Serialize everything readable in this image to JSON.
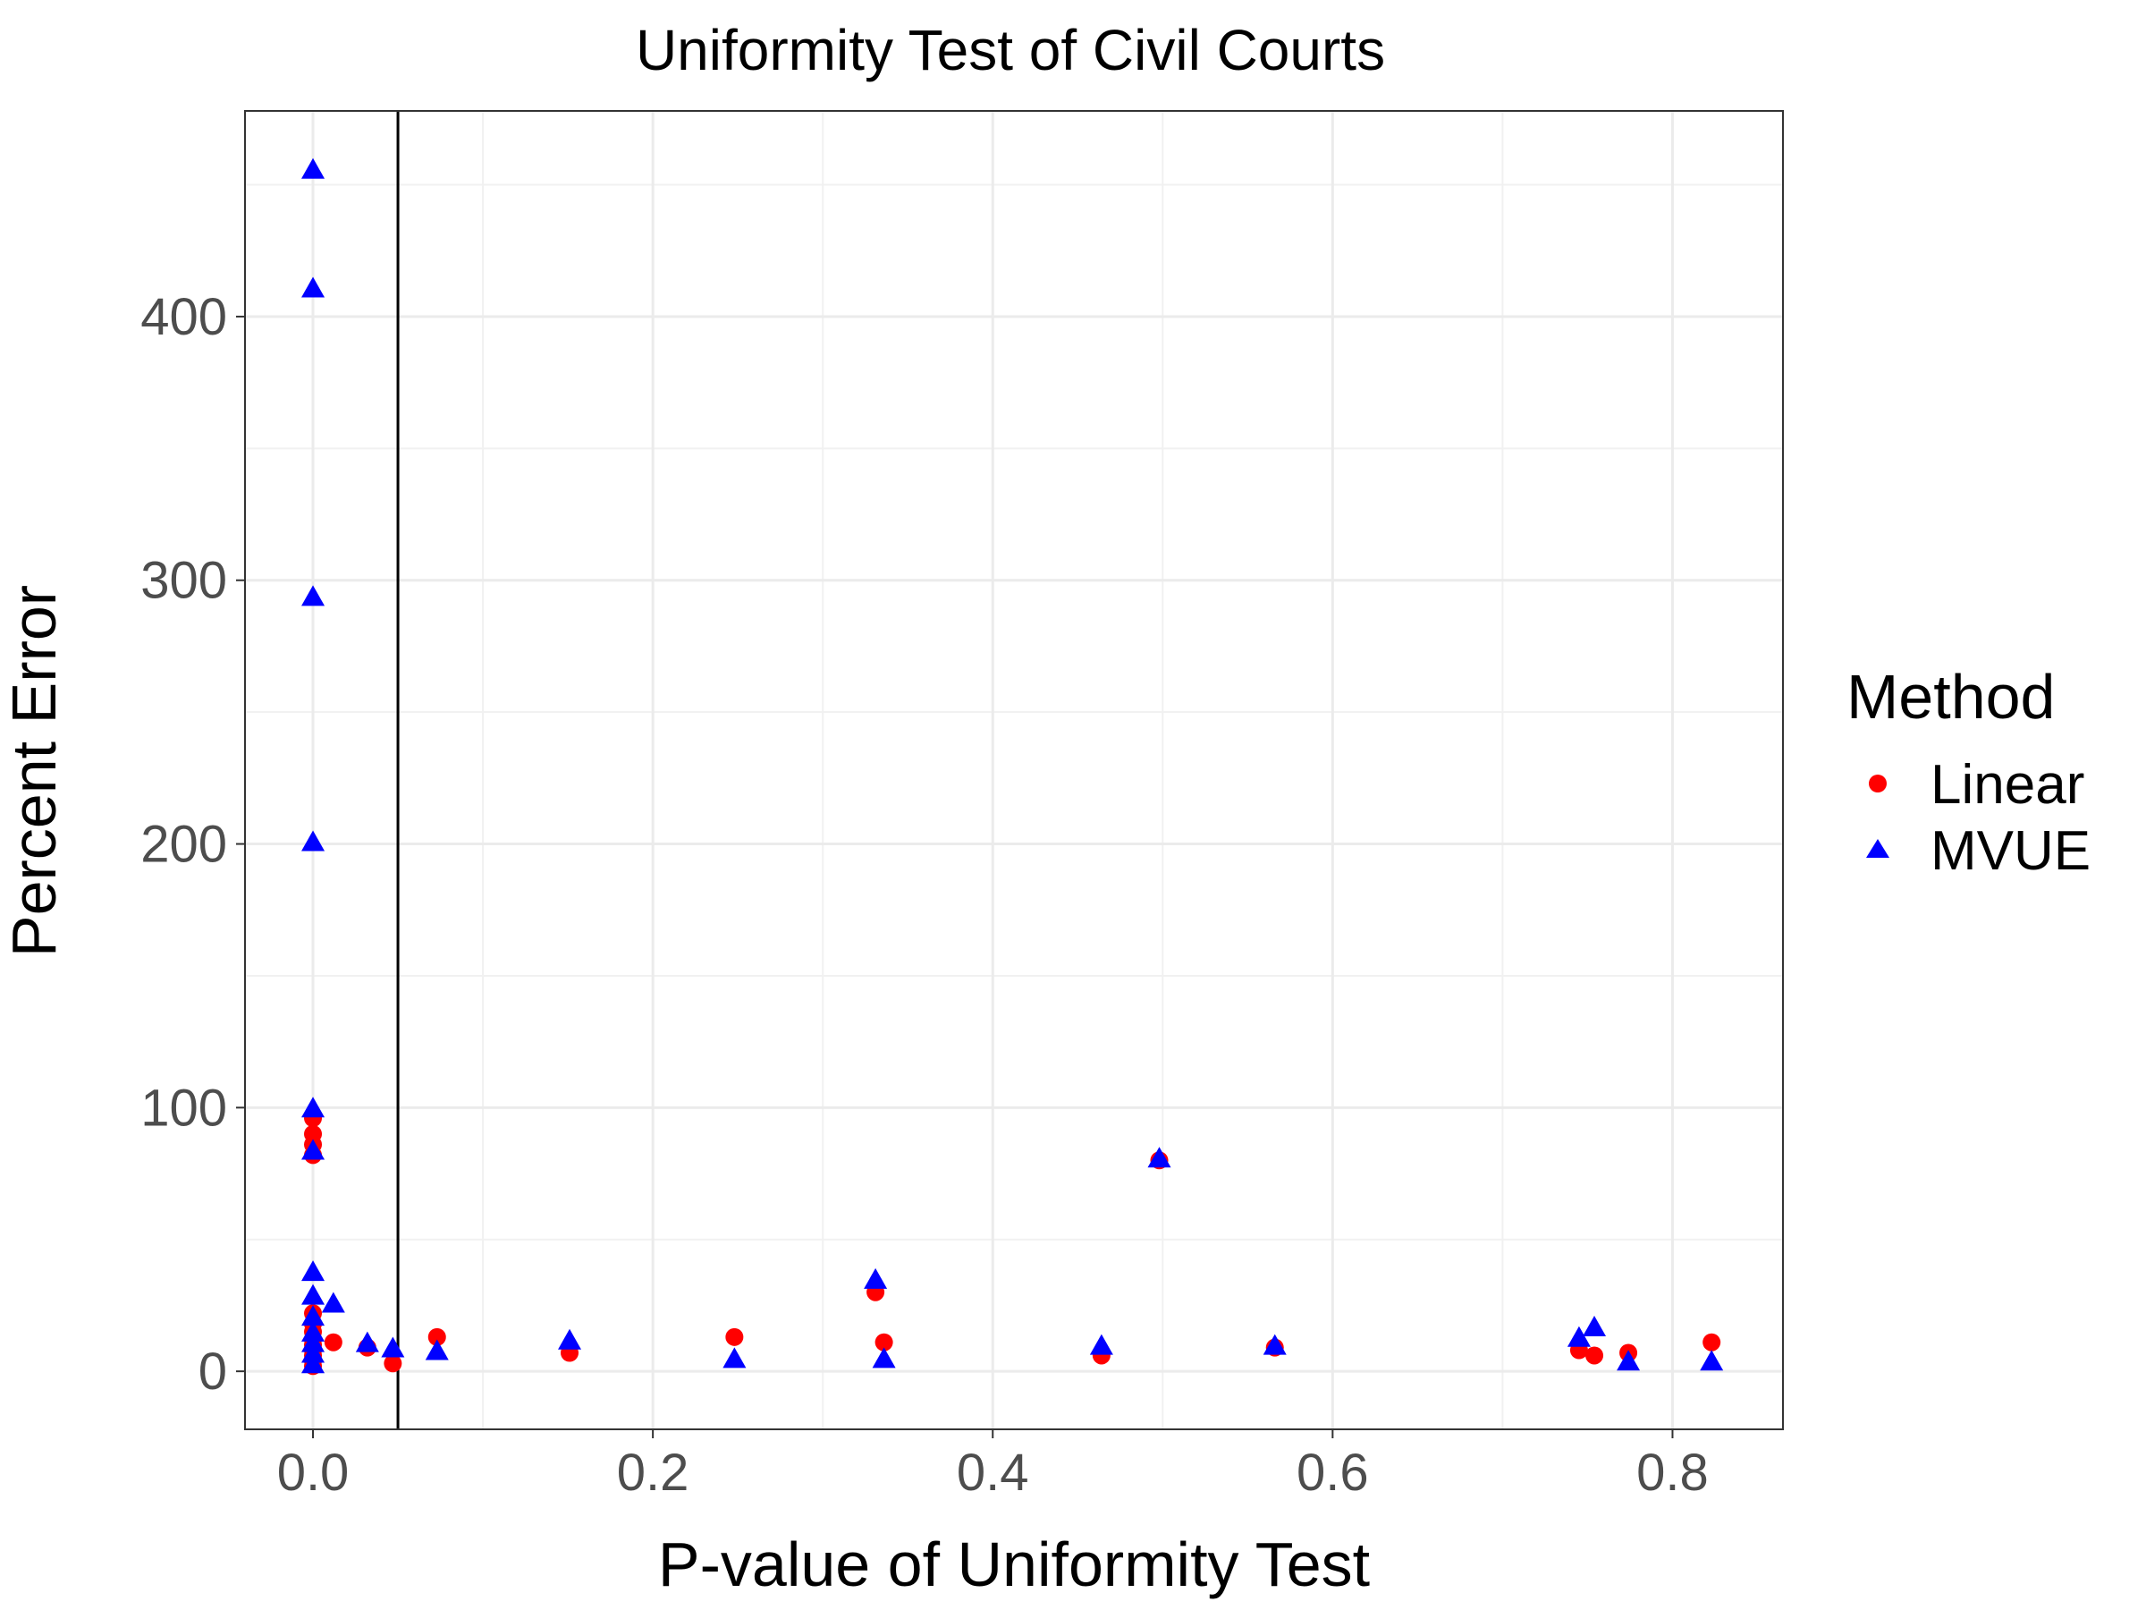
{
  "chart_data": {
    "type": "scatter",
    "title": "Uniformity Test of Civil Courts",
    "xlabel": "P-value of Uniformity Test",
    "ylabel": "Percent Error",
    "xlim": [
      -0.04,
      0.865
    ],
    "ylim": [
      -22,
      478
    ],
    "x_ticks": [
      {
        "value": 0.0,
        "label": "0.0"
      },
      {
        "value": 0.2,
        "label": "0.2"
      },
      {
        "value": 0.4,
        "label": "0.4"
      },
      {
        "value": 0.6,
        "label": "0.6"
      },
      {
        "value": 0.8,
        "label": "0.8"
      }
    ],
    "y_ticks": [
      {
        "value": 0,
        "label": "0"
      },
      {
        "value": 100,
        "label": "100"
      },
      {
        "value": 200,
        "label": "200"
      },
      {
        "value": 300,
        "label": "300"
      },
      {
        "value": 400,
        "label": "400"
      }
    ],
    "grid": true,
    "reference_line": {
      "x": 0.05
    },
    "legend": {
      "title": "Method",
      "position": "right"
    },
    "series": [
      {
        "name": "Linear",
        "color": "#ff0000",
        "marker": "circle",
        "points": [
          [
            0.0,
            96
          ],
          [
            0.0,
            90
          ],
          [
            0.0,
            86
          ],
          [
            0.0,
            82
          ],
          [
            0.0,
            22
          ],
          [
            0.0,
            18
          ],
          [
            0.0,
            15
          ],
          [
            0.0,
            12
          ],
          [
            0.0,
            10
          ],
          [
            0.0,
            8
          ],
          [
            0.0,
            6
          ],
          [
            0.0,
            4
          ],
          [
            0.0,
            2
          ],
          [
            0.012,
            11
          ],
          [
            0.032,
            9
          ],
          [
            0.047,
            3
          ],
          [
            0.073,
            13
          ],
          [
            0.151,
            7
          ],
          [
            0.248,
            13
          ],
          [
            0.331,
            30
          ],
          [
            0.336,
            11
          ],
          [
            0.464,
            6
          ],
          [
            0.498,
            80
          ],
          [
            0.566,
            9
          ],
          [
            0.745,
            8
          ],
          [
            0.754,
            6
          ],
          [
            0.774,
            7
          ],
          [
            0.823,
            11
          ]
        ]
      },
      {
        "name": "MVUE",
        "color": "#0000ff",
        "marker": "triangle",
        "points": [
          [
            0.0,
            455
          ],
          [
            0.0,
            410
          ],
          [
            0.0,
            293
          ],
          [
            0.0,
            200
          ],
          [
            0.0,
            99
          ],
          [
            0.0,
            83
          ],
          [
            0.0,
            37
          ],
          [
            0.0,
            28
          ],
          [
            0.0,
            20
          ],
          [
            0.0,
            14
          ],
          [
            0.0,
            10
          ],
          [
            0.0,
            6
          ],
          [
            0.0,
            2
          ],
          [
            0.012,
            25
          ],
          [
            0.032,
            10
          ],
          [
            0.047,
            8
          ],
          [
            0.073,
            7
          ],
          [
            0.151,
            11
          ],
          [
            0.248,
            4
          ],
          [
            0.331,
            34
          ],
          [
            0.336,
            4
          ],
          [
            0.464,
            9
          ],
          [
            0.498,
            80
          ],
          [
            0.566,
            9
          ],
          [
            0.745,
            12
          ],
          [
            0.754,
            16
          ],
          [
            0.774,
            3
          ],
          [
            0.823,
            3
          ]
        ]
      }
    ]
  }
}
